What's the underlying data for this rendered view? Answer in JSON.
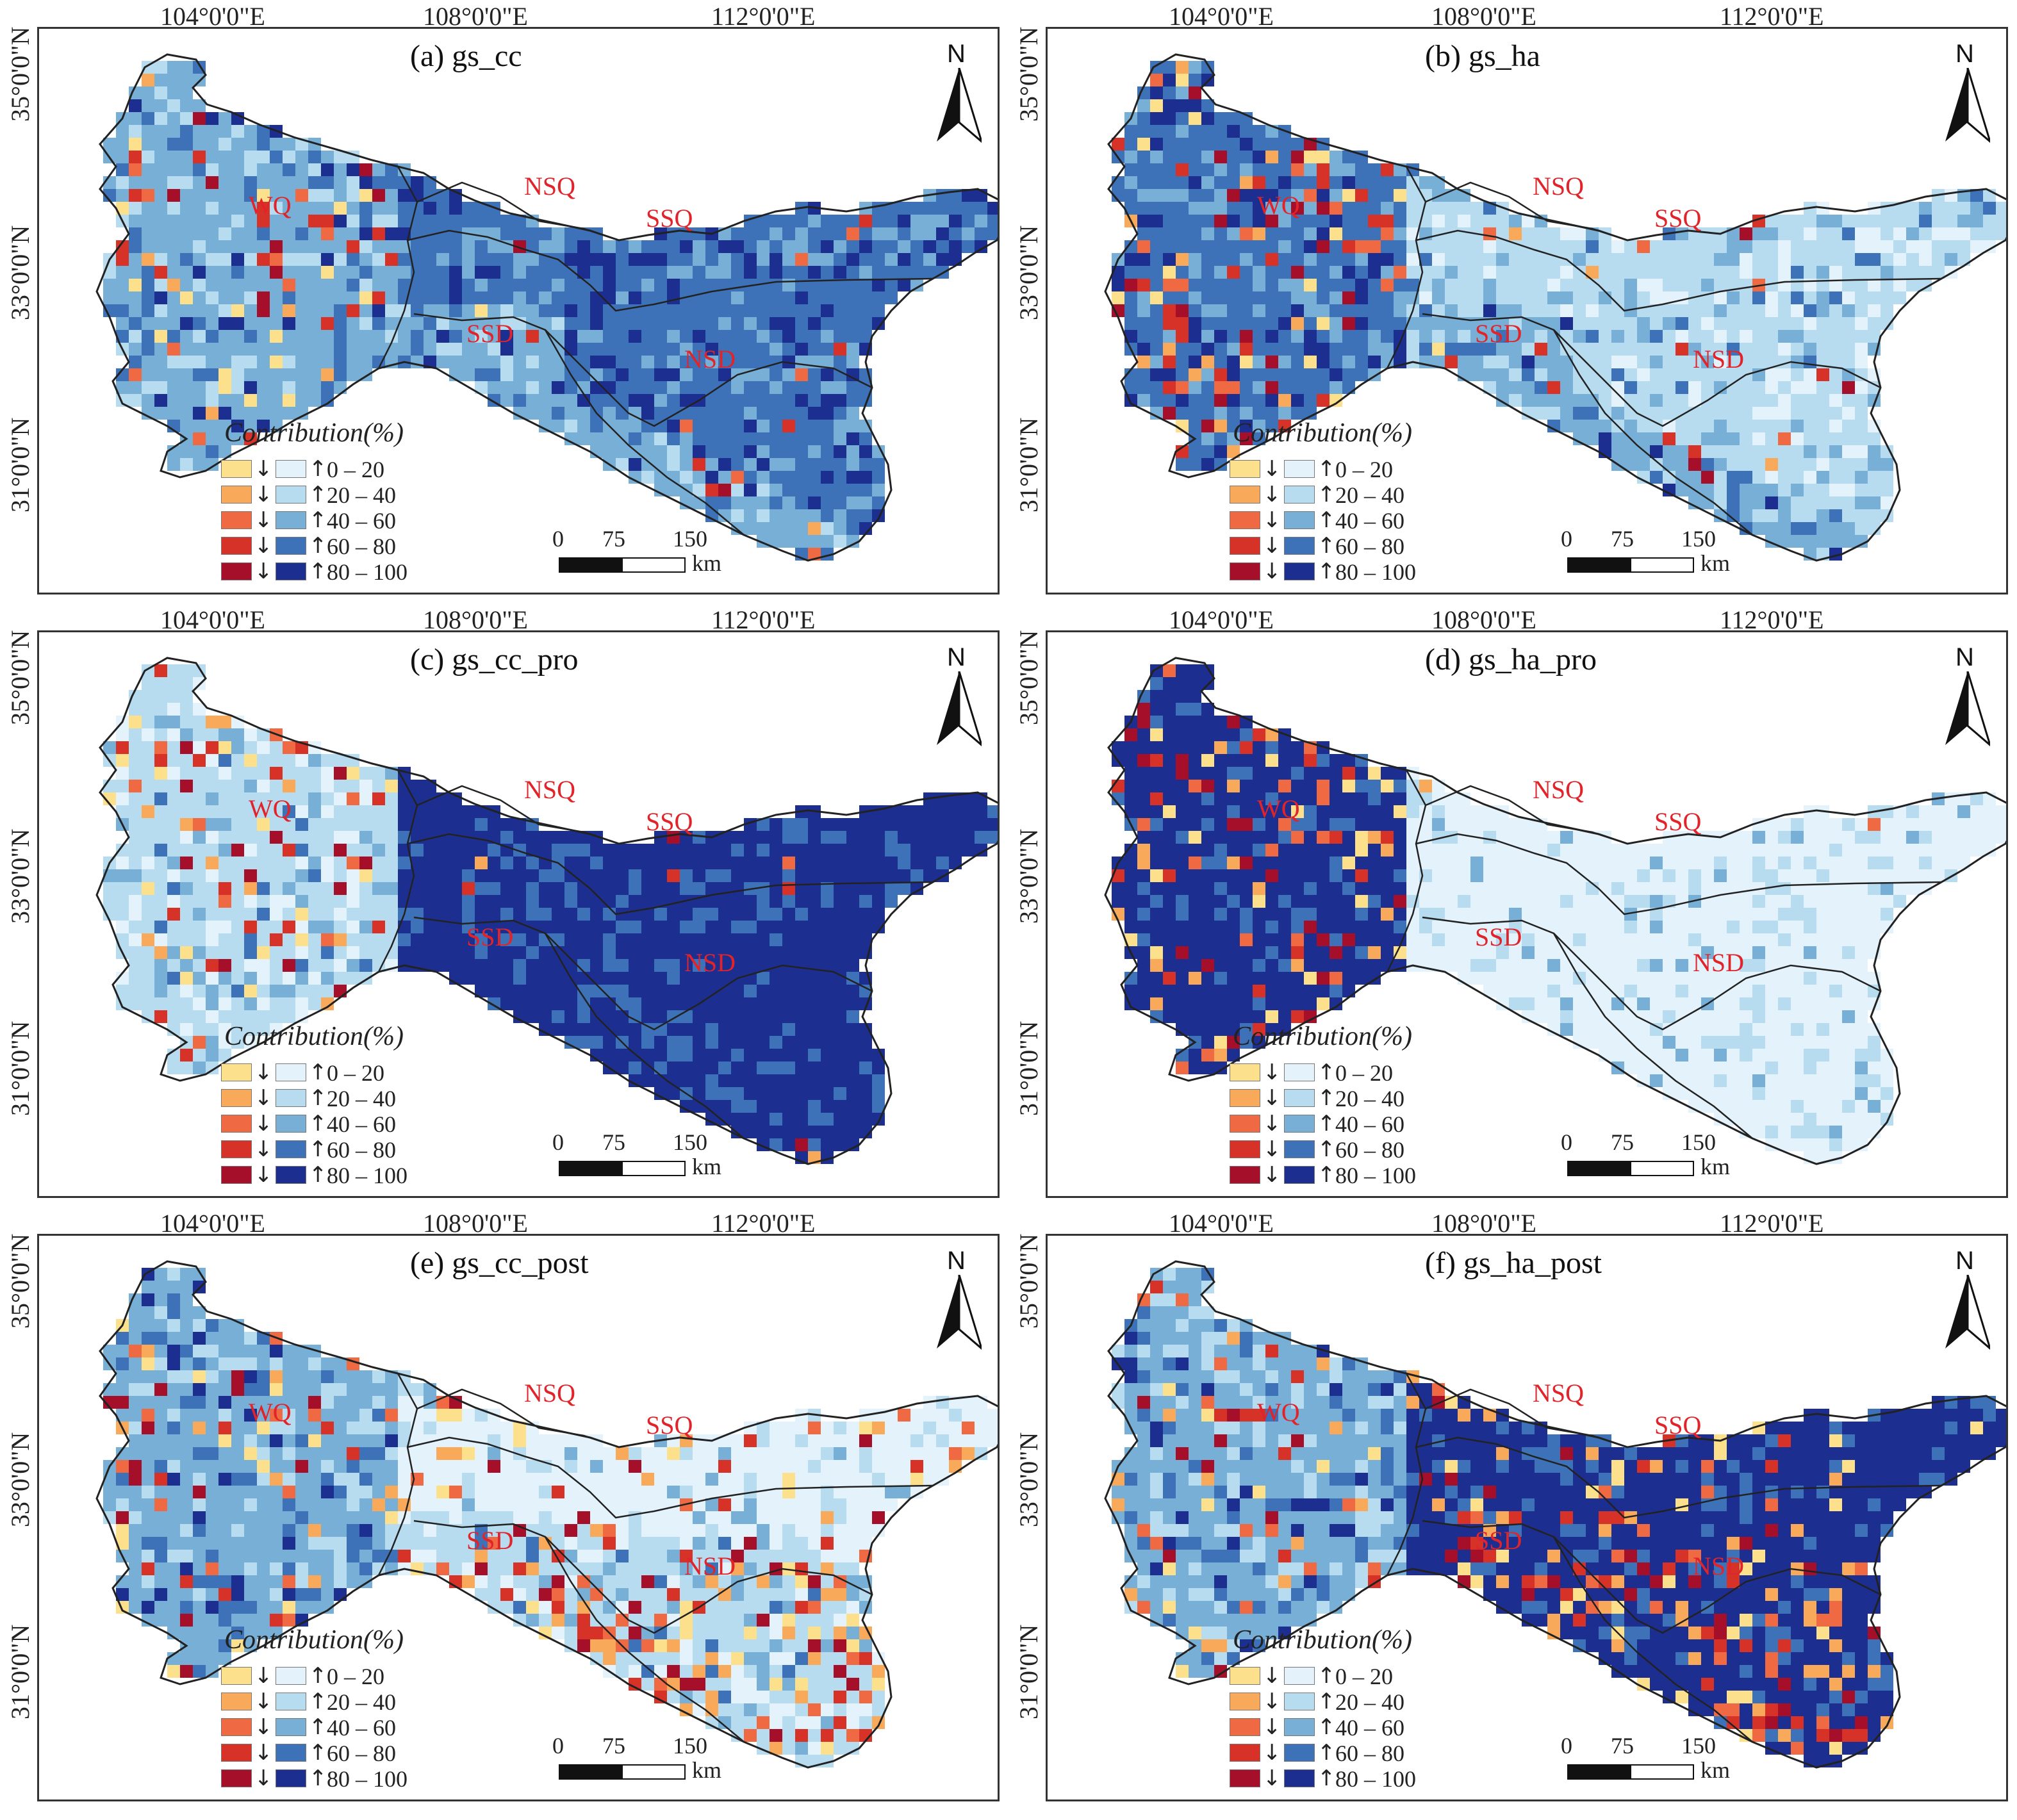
{
  "colors": {
    "decrease": [
      "#fde08c",
      "#f9a95a",
      "#ef6a43",
      "#d73227",
      "#a50f2a"
    ],
    "increase": [
      "#e4f3fb",
      "#b7dcf0",
      "#77afd7",
      "#3d72b9",
      "#1d2e91"
    ],
    "boundary": "#222222",
    "region_label": "#e0242a"
  },
  "axes": {
    "lon_labels": [
      "104°0'0\"E",
      "108°0'0\"E",
      "112°0'0\"E"
    ],
    "lat_labels": [
      "35°0'0\"N",
      "33°0'0\"N",
      "31°0'0\"N"
    ]
  },
  "legend": {
    "title": "Contribution(%)",
    "classes": [
      "0 – 20",
      "20 – 40",
      "40 – 60",
      "60 – 80",
      "80 – 100"
    ],
    "decrease_arrow": "↓",
    "increase_arrow": "↑"
  },
  "scale": {
    "ticks": [
      "0",
      "75",
      "150"
    ],
    "unit": "km"
  },
  "north_label": "N",
  "regions": [
    "WQ",
    "NSQ",
    "SSQ",
    "SSD",
    "NSD"
  ],
  "panels": [
    {
      "id": "a",
      "title": "(a) gs_cc",
      "regional_tone": {
        "WQ": 2,
        "NSQ": 3,
        "SSQ": 3,
        "SSD": 2,
        "NSD": 3
      },
      "red_share": {
        "WQ": 0.12,
        "NSQ": 0.08,
        "SSQ": 0.02,
        "SSD": 0.04,
        "NSD": 0.02
      }
    },
    {
      "id": "b",
      "title": "(b) gs_ha",
      "regional_tone": {
        "WQ": 3,
        "NSQ": 2,
        "SSQ": 1,
        "SSD": 2,
        "NSD": 1
      },
      "red_share": {
        "WQ": 0.18,
        "NSQ": 0.1,
        "SSQ": 0.03,
        "SSD": 0.08,
        "NSD": 0.03
      }
    },
    {
      "id": "c",
      "title": "(c) gs_cc_pro",
      "regional_tone": {
        "WQ": 1,
        "NSQ": 4,
        "SSQ": 4,
        "SSD": 4,
        "NSD": 4
      },
      "red_share": {
        "WQ": 0.12,
        "NSQ": 0.04,
        "SSQ": 0.01,
        "SSD": 0.01,
        "NSD": 0.0
      }
    },
    {
      "id": "d",
      "title": "(d) gs_ha_pro",
      "regional_tone": {
        "WQ": 4,
        "NSQ": 0,
        "SSQ": 0,
        "SSD": 0,
        "NSD": 0
      },
      "red_share": {
        "WQ": 0.18,
        "NSQ": 0.06,
        "SSQ": 0.01,
        "SSD": 0.01,
        "NSD": 0.0
      }
    },
    {
      "id": "e",
      "title": "(e) gs_cc_post",
      "regional_tone": {
        "WQ": 2,
        "NSQ": 1,
        "SSQ": 0,
        "SSD": 1,
        "NSD": 1
      },
      "red_share": {
        "WQ": 0.1,
        "NSQ": 0.35,
        "SSQ": 0.12,
        "SSD": 0.3,
        "NSD": 0.25
      }
    },
    {
      "id": "f",
      "title": "(f) gs_ha_post",
      "regional_tone": {
        "WQ": 2,
        "NSQ": 4,
        "SSQ": 4,
        "SSD": 4,
        "NSD": 4
      },
      "red_share": {
        "WQ": 0.1,
        "NSQ": 0.35,
        "SSQ": 0.12,
        "SSD": 0.3,
        "NSD": 0.25
      }
    }
  ]
}
